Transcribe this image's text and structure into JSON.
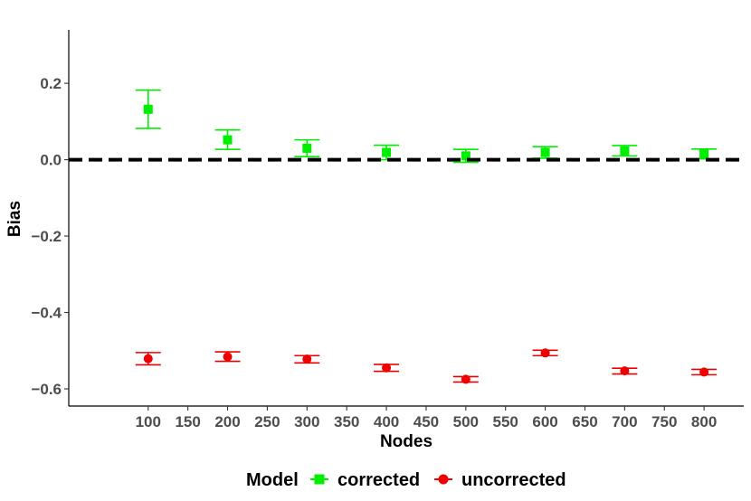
{
  "chart_data": {
    "type": "scatter",
    "xlabel": "Nodes",
    "ylabel": "Bias",
    "xlim": [
      0,
      850
    ],
    "ylim": [
      -0.645,
      0.34
    ],
    "x_ticks": [
      100,
      150,
      200,
      250,
      300,
      350,
      400,
      450,
      500,
      550,
      600,
      650,
      700,
      750,
      800
    ],
    "y_ticks": [
      -0.6,
      -0.4,
      -0.2,
      0.0,
      0.2
    ],
    "y_tick_labels": [
      "−0.6",
      "−0.4",
      "−0.2",
      "0.0",
      "0.2"
    ],
    "reference_line": {
      "y": 0,
      "style": "dashed",
      "color": "#000000"
    },
    "grid": false,
    "legend": {
      "title": "Model",
      "position": "bottom"
    },
    "series": [
      {
        "name": "corrected",
        "color": "#00ee00",
        "marker": "square",
        "x": [
          100,
          200,
          300,
          400,
          500,
          600,
          700,
          800
        ],
        "y": [
          0.132,
          0.052,
          0.03,
          0.019,
          0.01,
          0.019,
          0.023,
          0.015
        ],
        "lower": [
          0.082,
          0.027,
          0.008,
          0.0,
          -0.007,
          0.004,
          0.01,
          0.002
        ],
        "upper": [
          0.182,
          0.078,
          0.052,
          0.038,
          0.027,
          0.034,
          0.037,
          0.028
        ]
      },
      {
        "name": "uncorrected",
        "color": "#ee0000",
        "marker": "circle",
        "x": [
          100,
          200,
          300,
          400,
          500,
          600,
          700,
          800
        ],
        "y": [
          -0.521,
          -0.516,
          -0.522,
          -0.545,
          -0.575,
          -0.506,
          -0.553,
          -0.556
        ],
        "lower": [
          -0.537,
          -0.528,
          -0.532,
          -0.554,
          -0.582,
          -0.513,
          -0.561,
          -0.563
        ],
        "upper": [
          -0.505,
          -0.503,
          -0.513,
          -0.536,
          -0.568,
          -0.499,
          -0.546,
          -0.549
        ]
      }
    ]
  }
}
